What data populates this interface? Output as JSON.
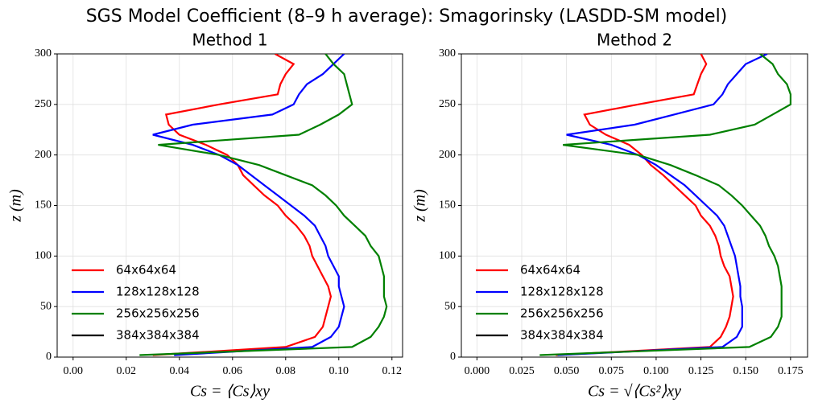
{
  "title": "SGS Model Coefficient (8–9 h average): Smagorinsky (LASDD-SM model)",
  "chart_data": [
    {
      "type": "line",
      "orientation": "horizontal",
      "title": "Method 1",
      "xlabel": "Cs = ⟨Cs⟩xy",
      "ylabel": "z (m)",
      "z": [
        2,
        10,
        20,
        30,
        40,
        50,
        60,
        70,
        80,
        90,
        100,
        110,
        120,
        130,
        140,
        150,
        160,
        170,
        180,
        190,
        200,
        210,
        220,
        230,
        240,
        250,
        260,
        270,
        280,
        290,
        300
      ],
      "series": [
        {
          "name": "64x64x64",
          "color": "#ff0000",
          "values": [
            0.03,
            0.08,
            0.091,
            0.094,
            0.095,
            0.096,
            0.097,
            0.096,
            0.094,
            0.092,
            0.09,
            0.089,
            0.087,
            0.084,
            0.08,
            0.077,
            0.072,
            0.068,
            0.064,
            0.062,
            0.058,
            0.05,
            0.04,
            0.036,
            0.035,
            0.055,
            0.077,
            0.078,
            0.08,
            0.083,
            0.076
          ]
        },
        {
          "name": "128x128x128",
          "color": "#0000ff",
          "values": [
            0.038,
            0.09,
            0.097,
            0.1,
            0.101,
            0.102,
            0.101,
            0.1,
            0.1,
            0.098,
            0.096,
            0.095,
            0.093,
            0.091,
            0.087,
            0.082,
            0.077,
            0.072,
            0.067,
            0.062,
            0.055,
            0.045,
            0.03,
            0.045,
            0.075,
            0.083,
            0.085,
            0.088,
            0.094,
            0.098,
            0.102
          ]
        },
        {
          "name": "256x256x256",
          "color": "#008000",
          "values": [
            0.025,
            0.105,
            0.112,
            0.115,
            0.117,
            0.118,
            0.117,
            0.117,
            0.117,
            0.116,
            0.115,
            0.112,
            0.11,
            0.106,
            0.102,
            0.099,
            0.095,
            0.09,
            0.08,
            0.07,
            0.055,
            0.032,
            0.085,
            0.093,
            0.1,
            0.105,
            0.104,
            0.103,
            0.102,
            0.098,
            0.095
          ]
        },
        {
          "name": "384x384x384",
          "color": "#000000",
          "values": [
            null,
            null,
            null,
            null,
            null,
            null,
            null,
            null,
            null,
            null,
            null,
            null,
            null,
            null,
            null,
            null,
            null,
            null,
            null,
            null,
            null,
            null,
            null,
            null,
            null,
            null,
            null,
            null,
            null,
            null,
            null
          ]
        }
      ],
      "xlim": [
        -0.006,
        0.124
      ],
      "ylim": [
        0,
        300
      ],
      "xticks": [
        {
          "value": 0,
          "label": "0.00"
        },
        0.02,
        0.04,
        0.06,
        0.08,
        {
          "value": 0.1,
          "label": "0.10"
        },
        0.12
      ],
      "yticks": [
        0,
        50,
        100,
        150,
        200,
        250,
        300
      ],
      "grid": true,
      "legend": "lower left"
    },
    {
      "type": "line",
      "orientation": "horizontal",
      "title": "Method 2",
      "xlabel": "Cs = √⟨Cs²⟩xy",
      "ylabel": "z (m)",
      "z": [
        2,
        10,
        20,
        30,
        40,
        50,
        60,
        70,
        80,
        90,
        100,
        110,
        120,
        130,
        140,
        150,
        160,
        170,
        180,
        190,
        200,
        210,
        220,
        230,
        240,
        250,
        260,
        270,
        280,
        290,
        300
      ],
      "series": [
        {
          "name": "64x64x64",
          "color": "#ff0000",
          "values": [
            0.044,
            0.13,
            0.136,
            0.139,
            0.141,
            0.142,
            0.143,
            0.142,
            0.141,
            0.138,
            0.136,
            0.135,
            0.133,
            0.13,
            0.125,
            0.122,
            0.116,
            0.11,
            0.104,
            0.097,
            0.092,
            0.085,
            0.072,
            0.063,
            0.06,
            0.09,
            0.121,
            0.123,
            0.125,
            0.128,
            0.125
          ]
        },
        {
          "name": "128x128x128",
          "color": "#0000ff",
          "values": [
            0.045,
            0.137,
            0.145,
            0.148,
            0.148,
            0.148,
            0.147,
            0.147,
            0.146,
            0.145,
            0.144,
            0.142,
            0.14,
            0.138,
            0.134,
            0.128,
            0.122,
            0.116,
            0.108,
            0.1,
            0.09,
            0.075,
            0.05,
            0.088,
            0.11,
            0.132,
            0.137,
            0.14,
            0.145,
            0.15,
            0.162
          ]
        },
        {
          "name": "256x256x256",
          "color": "#008000",
          "values": [
            0.035,
            0.152,
            0.164,
            0.168,
            0.17,
            0.17,
            0.17,
            0.17,
            0.169,
            0.168,
            0.166,
            0.163,
            0.161,
            0.158,
            0.153,
            0.148,
            0.142,
            0.135,
            0.122,
            0.108,
            0.09,
            0.048,
            0.13,
            0.155,
            0.165,
            0.175,
            0.175,
            0.173,
            0.168,
            0.165,
            0.158
          ]
        },
        {
          "name": "384x384x384",
          "color": "#000000",
          "values": [
            null,
            null,
            null,
            null,
            null,
            null,
            null,
            null,
            null,
            null,
            null,
            null,
            null,
            null,
            null,
            null,
            null,
            null,
            null,
            null,
            null,
            null,
            null,
            null,
            null,
            null,
            null,
            null,
            null,
            null,
            null
          ]
        }
      ],
      "xlim": [
        -0.0087,
        0.1845
      ],
      "ylim": [
        0,
        300
      ],
      "xticks": [
        {
          "value": 0,
          "label": "0.000"
        },
        0.025,
        {
          "value": 0.05,
          "label": "0.050"
        },
        0.075,
        {
          "value": 0.1,
          "label": "0.100"
        },
        0.125,
        {
          "value": 0.15,
          "label": "0.150"
        },
        0.175
      ],
      "yticks": [
        0,
        50,
        100,
        150,
        200,
        250,
        300
      ],
      "grid": true,
      "legend": "lower left"
    }
  ]
}
